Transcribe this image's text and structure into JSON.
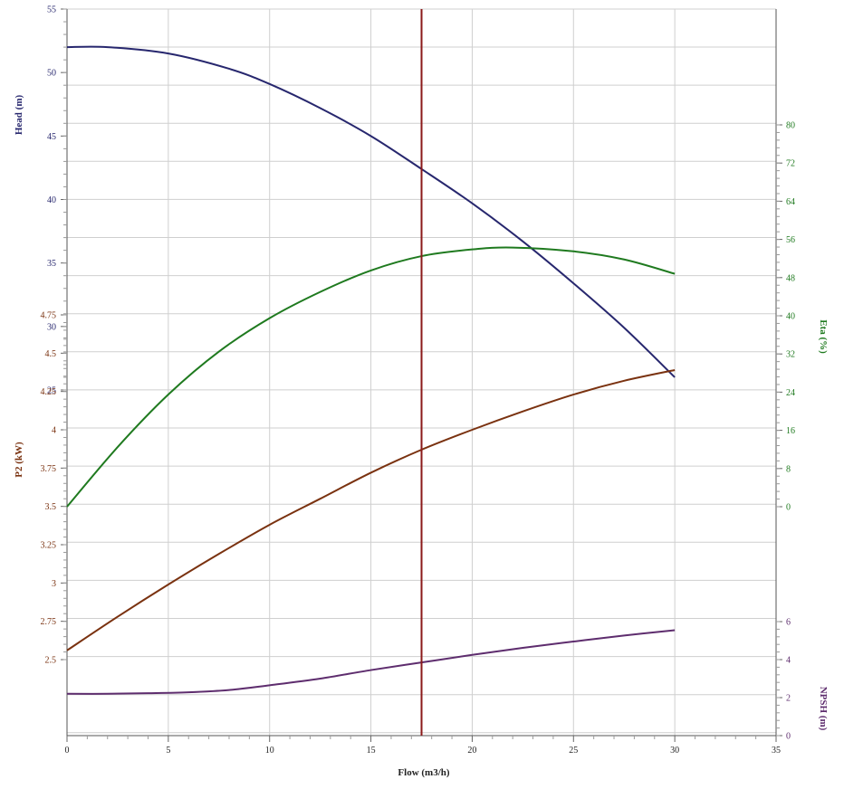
{
  "chart_data": {
    "type": "line",
    "x": {
      "label": "Flow (m3/h)",
      "range": [
        0,
        35
      ],
      "ticks": [
        "0",
        "5",
        "10",
        "15",
        "20",
        "25",
        "30",
        "35"
      ]
    },
    "axes": {
      "head": {
        "label": "Head (m)",
        "range": [
          20,
          55
        ],
        "ticks": [
          "25",
          "30",
          "35",
          "40",
          "45",
          "50",
          "55"
        ],
        "color": "#27276e"
      },
      "p2": {
        "label": "P2 (kW)",
        "range": [
          2.25,
          4.75
        ],
        "ticks": [
          "2.5",
          "2.75",
          "3",
          "3.25",
          "3.5",
          "3.75",
          "4",
          "4.25",
          "4.5",
          "4.75"
        ],
        "color": "#7a3210"
      },
      "eta": {
        "label": "Eta (%)",
        "range": [
          0,
          80
        ],
        "ticks": [
          "0",
          "8",
          "16",
          "24",
          "32",
          "40",
          "48",
          "56",
          "64",
          "72",
          "80"
        ],
        "color": "#1f7a1f"
      },
      "npsh": {
        "label": "NPSH (m)",
        "range": [
          0,
          6
        ],
        "ticks": [
          "0",
          "2",
          "4",
          "6"
        ],
        "color": "#5e2d6e"
      }
    },
    "grid": true,
    "series": [
      {
        "axis": "head",
        "color": "#27276e",
        "x": [
          0,
          2,
          5,
          8,
          10,
          12.5,
          15,
          17.5,
          20,
          22.5,
          25,
          27.5,
          30
        ],
        "y": [
          52,
          52,
          51.5,
          50.3,
          49.1,
          47.2,
          45.0,
          42.4,
          39.7,
          36.7,
          33.4,
          29.9,
          26.0
        ]
      },
      {
        "axis": "eta",
        "color": "#1f7a1f",
        "x": [
          0,
          2.5,
          5,
          7.5,
          10,
          12.5,
          15,
          17.5,
          20,
          22,
          25,
          27.5,
          30
        ],
        "y": [
          0,
          12.5,
          23.5,
          32.5,
          39.5,
          45.0,
          49.5,
          52.5,
          53.9,
          54.3,
          53.5,
          51.8,
          48.8
        ]
      },
      {
        "axis": "p2",
        "color": "#7a3210",
        "x": [
          0,
          2.5,
          5,
          7.5,
          10,
          12.5,
          15,
          17.5,
          20,
          22.5,
          25,
          27.5,
          30
        ],
        "y": [
          2.56,
          2.78,
          2.99,
          3.19,
          3.38,
          3.55,
          3.72,
          3.87,
          4.0,
          4.12,
          4.23,
          4.32,
          4.39
        ]
      },
      {
        "axis": "npsh",
        "color": "#5e2d6e",
        "x": [
          0,
          2,
          4,
          6,
          8,
          10,
          12.5,
          15,
          17.5,
          20,
          22.5,
          25,
          27.5,
          30
        ],
        "y": [
          2.2,
          2.2,
          2.23,
          2.28,
          2.4,
          2.65,
          3.0,
          3.45,
          3.85,
          4.25,
          4.62,
          4.95,
          5.27,
          5.55
        ]
      }
    ],
    "operating_point": {
      "x": 17.5,
      "color": "#8b1a1a"
    }
  }
}
